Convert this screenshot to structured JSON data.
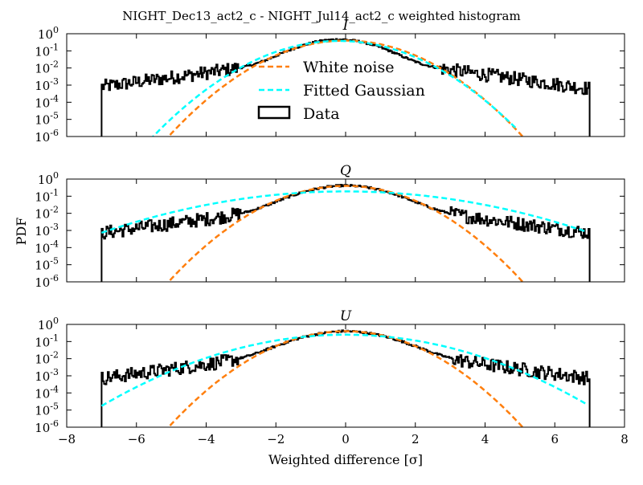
{
  "chart_data": {
    "type": "histogram",
    "title": "NIGHT_Dec13_act2_c - NIGHT_Jul14_act2_c weighted histogram",
    "xlabel": "Weighted difference [σ]",
    "ylabel": "PDF",
    "xlim": [
      -8,
      8
    ],
    "ylim": [
      1e-06,
      1
    ],
    "yscale": "log",
    "x_ticks": [
      "−8",
      "−6",
      "−4",
      "−2",
      "0",
      "2",
      "4",
      "6",
      "8"
    ],
    "y_ticks": [
      "10",
      "10",
      "10",
      "10",
      "10",
      "10",
      "10"
    ],
    "y_tick_exponents": [
      "-6",
      "-5",
      "-4",
      "-3",
      "-2",
      "-1",
      "0"
    ],
    "legend": {
      "placement": "inside-top-center",
      "entries": [
        {
          "label": "White noise",
          "color": "#ff7f0e",
          "style": "dashed"
        },
        {
          "label": "Fitted Gaussian",
          "color": "#00ffff",
          "style": "dashed"
        },
        {
          "label": "Data",
          "color": "#000000",
          "style": "box"
        }
      ]
    },
    "panels": [
      {
        "name": "I",
        "data_range": [
          -7.0,
          7.0
        ],
        "series": [
          {
            "name": "White noise",
            "color": "#ff7f0e",
            "mu": 0.0,
            "sigma": 1.0,
            "amp": 0.3989
          },
          {
            "name": "Fitted Gaussian",
            "color": "#00ffff",
            "mu": -0.2,
            "sigma": 1.05,
            "amp": 0.38,
            "x_range": [
              -5.85,
              4.9
            ]
          },
          {
            "name": "Data",
            "color": "#000000",
            "mu": -0.2,
            "sigma": 0.8,
            "tail_scale": 1.6,
            "tail_frac": 0.18,
            "floor": 0.0005
          }
        ]
      },
      {
        "name": "Q",
        "data_range": [
          -7.0,
          7.0
        ],
        "series": [
          {
            "name": "White noise",
            "color": "#ff7f0e",
            "mu": 0.0,
            "sigma": 1.0,
            "amp": 0.3989
          },
          {
            "name": "Fitted Gaussian",
            "color": "#00ffff",
            "mu": 0.0,
            "sigma": 2.1,
            "amp": 0.19,
            "x_range": [
              -7.0,
              6.9
            ]
          },
          {
            "name": "Data",
            "color": "#000000",
            "mu": 0.0,
            "sigma": 0.9,
            "tail_scale": 1.6,
            "tail_frac": 0.18,
            "floor": 0.0005
          }
        ]
      },
      {
        "name": "U",
        "data_range": [
          -7.0,
          7.0
        ],
        "series": [
          {
            "name": "White noise",
            "color": "#ff7f0e",
            "mu": 0.0,
            "sigma": 1.0,
            "amp": 0.3989
          },
          {
            "name": "Fitted Gaussian",
            "color": "#00ffff",
            "mu": 0.0,
            "sigma": 1.6,
            "amp": 0.25,
            "x_range": [
              -7.0,
              6.9
            ]
          },
          {
            "name": "Data",
            "color": "#000000",
            "mu": 0.0,
            "sigma": 0.95,
            "tail_scale": 1.6,
            "tail_frac": 0.18,
            "floor": 0.0005
          }
        ]
      }
    ]
  }
}
